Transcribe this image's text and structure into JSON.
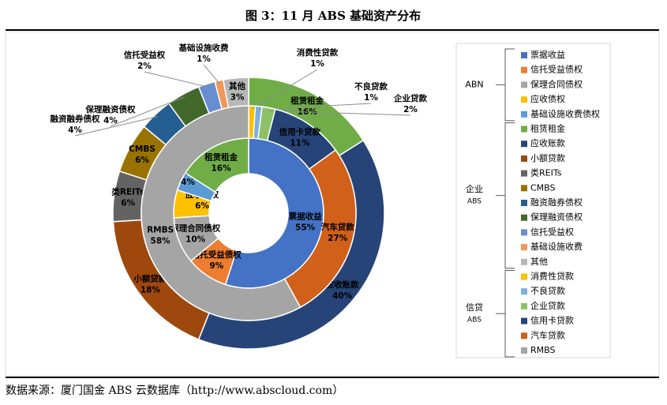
{
  "chart_data": {
    "type": "donut",
    "title": "图 3：11 月 ABS 基础资产分布",
    "source": "数据来源：厦门国金 ABS 云数据库（http://www.abscloud.com）",
    "rings": [
      {
        "ring": "inner",
        "group_label": [
          "ABN"
        ],
        "categories": [
          "票据收益",
          "信托受益债权",
          "保理合同债权",
          "应收债权",
          "基础设施收费债权",
          "租赁租金"
        ],
        "values": [
          55,
          9,
          10,
          6,
          4,
          16
        ],
        "value_labels": [
          "55%",
          "9%",
          "10%",
          "6%",
          "4%",
          "16%"
        ],
        "colors": [
          "#4472c4",
          "#ed7d31",
          "#a5a5a5",
          "#ffc000",
          "#5b9bd5",
          "#70ad47"
        ]
      },
      {
        "ring": "outer",
        "group_label": [
          "企业",
          "ABS"
        ],
        "categories": [
          "租赁租金",
          "应收账款",
          "小额贷款",
          "类REITs",
          "CMBS",
          "融资融券债权",
          "保理融资债权",
          "信托受益权",
          "基础设施收费",
          "其他"
        ],
        "values": [
          16,
          40,
          18,
          6,
          6,
          4,
          4,
          2,
          1,
          3
        ],
        "value_labels": [
          "16%",
          "40%",
          "18%",
          "6%",
          "6%",
          "4%",
          "4%",
          "2%",
          "1%",
          "3%"
        ],
        "colors": [
          "#70ad47",
          "#264478",
          "#9e480e",
          "#636363",
          "#997300",
          "#255e91",
          "#43682b",
          "#698ed0",
          "#f1975a",
          "#b7b7b7"
        ]
      },
      {
        "ring": "middle",
        "group_label": [
          "信贷",
          "ABS"
        ],
        "categories": [
          "消费性贷款",
          "不良贷款",
          "企业贷款",
          "信用卡贷款",
          "汽车贷款",
          "RMBS"
        ],
        "values": [
          1,
          1,
          2,
          11,
          27,
          58
        ],
        "value_labels": [
          "1%",
          "1%",
          "2%",
          "11%",
          "27%",
          "58%"
        ],
        "colors": [
          "#ffc000",
          "#7cafdd",
          "#8cc168",
          "#264478",
          "#d0601a",
          "#a5a5a5"
        ]
      }
    ]
  }
}
